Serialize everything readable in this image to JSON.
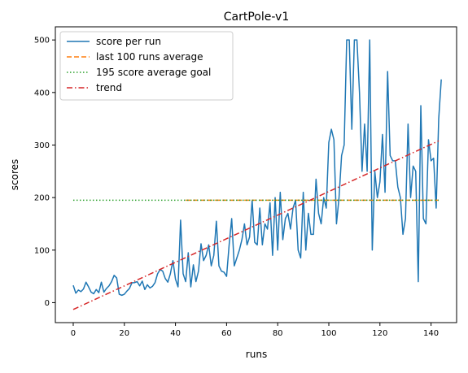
{
  "chart_data": {
    "type": "line",
    "title": "CartPole-v1",
    "xlabel": "runs",
    "ylabel": "scores",
    "xlim": [
      -7,
      150
    ],
    "ylim": [
      -38,
      525
    ],
    "xticks": [
      0,
      20,
      40,
      60,
      80,
      100,
      120,
      140
    ],
    "yticks": [
      0,
      100,
      200,
      300,
      400,
      500
    ],
    "grid": false,
    "legend_location": "upper left",
    "series": [
      {
        "name": "score per run",
        "style": "solid",
        "color": "#1f77b4",
        "x_start": 0,
        "values": [
          33,
          18,
          24,
          21,
          26,
          39,
          30,
          20,
          17,
          25,
          19,
          39,
          20,
          27,
          32,
          40,
          52,
          47,
          16,
          14,
          16,
          22,
          27,
          38,
          38,
          40,
          32,
          41,
          25,
          34,
          28,
          31,
          38,
          55,
          63,
          60,
          46,
          39,
          55,
          80,
          45,
          30,
          157,
          55,
          40,
          95,
          30,
          72,
          40,
          60,
          112,
          80,
          90,
          110,
          70,
          90,
          155,
          70,
          60,
          58,
          50,
          110,
          160,
          70,
          85,
          100,
          120,
          150,
          110,
          125,
          195,
          115,
          110,
          180,
          110,
          150,
          140,
          190,
          90,
          200,
          100,
          210,
          120,
          160,
          170,
          140,
          180,
          195,
          100,
          85,
          210,
          100,
          170,
          130,
          130,
          235,
          170,
          150,
          200,
          180,
          305,
          330,
          310,
          150,
          200,
          280,
          300,
          500,
          500,
          330,
          500,
          500,
          400,
          250,
          340,
          250,
          500,
          100,
          250,
          200,
          230,
          320,
          210,
          440,
          280,
          270,
          270,
          220,
          200,
          130,
          160,
          340,
          200,
          260,
          250,
          40,
          375,
          160,
          150,
          310,
          270,
          275,
          180,
          350,
          425
        ]
      },
      {
        "name": "last 100 runs average",
        "style": "dashed",
        "color": "#ff7f0e",
        "x": [
          44,
          143
        ],
        "values": [
          195,
          195
        ]
      },
      {
        "name": "195 score average goal",
        "style": "dotted",
        "color": "#2ca02c",
        "x": [
          0,
          143
        ],
        "values": [
          195,
          195
        ]
      },
      {
        "name": "trend",
        "style": "dashdot",
        "color": "#d62728",
        "x": [
          0,
          143
        ],
        "values": [
          -13,
          308
        ]
      }
    ]
  }
}
